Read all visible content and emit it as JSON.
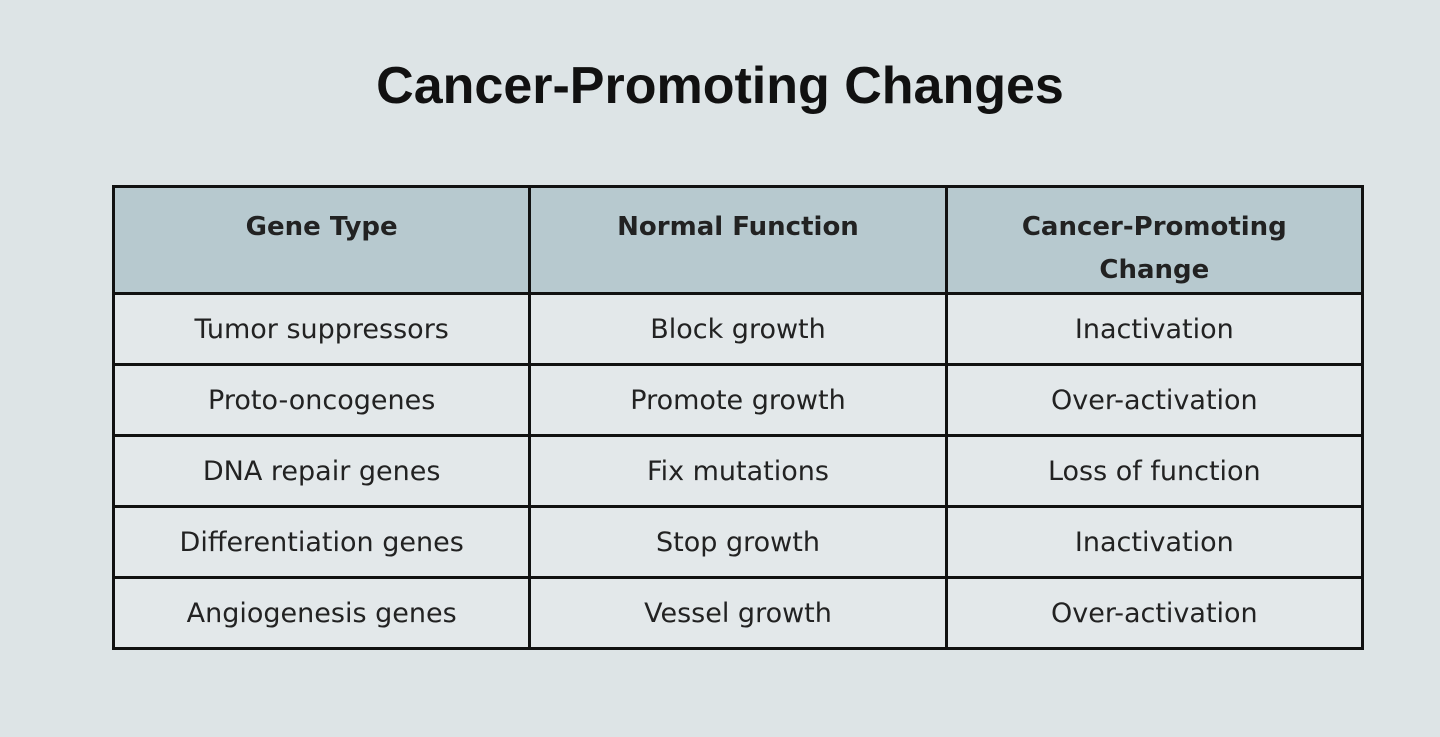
{
  "title": "Cancer-Promoting Changes",
  "table": {
    "header": [
      "Gene Type",
      "Normal Function",
      "Cancer-Promoting Change"
    ],
    "rows": [
      [
        "Tumor suppressors",
        "Block growth",
        "Inactivation"
      ],
      [
        "Proto-oncogenes",
        "Promote growth",
        "Over-activation"
      ],
      [
        "DNA repair genes",
        "Fix mutations",
        "Loss of function"
      ],
      [
        "Differentiation genes",
        "Stop growth",
        "Inactivation"
      ],
      [
        "Angiogenesis genes",
        "Vessel growth",
        "Over-activation"
      ]
    ]
  }
}
